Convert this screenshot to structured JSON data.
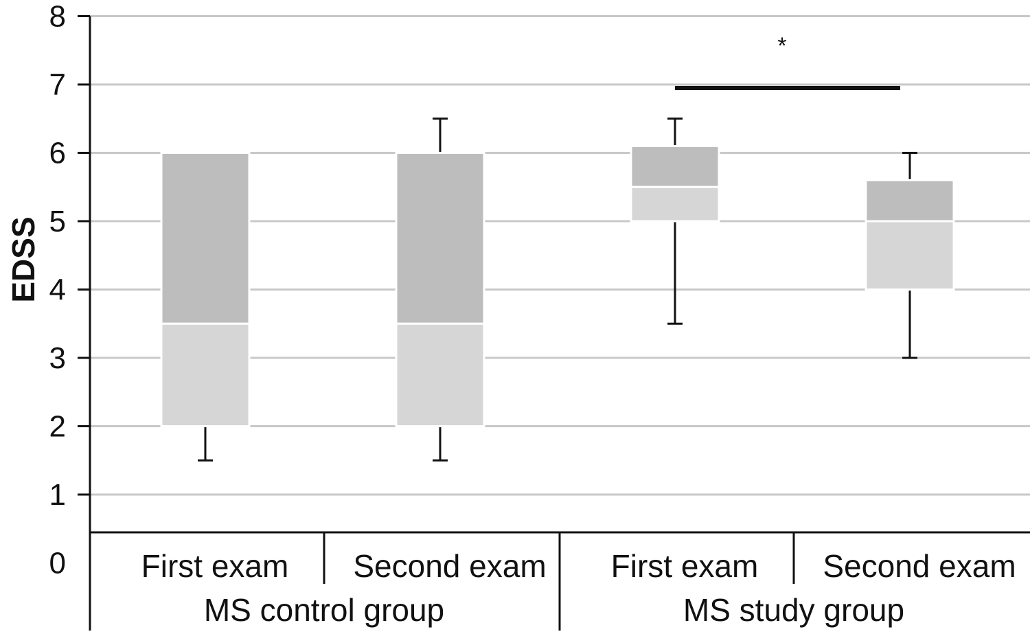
{
  "chart_data": {
    "type": "box",
    "ylabel": "EDSS",
    "ylim": [
      0,
      8
    ],
    "yticks": [
      "0",
      "1",
      "2",
      "3",
      "4",
      "5",
      "6",
      "7",
      "8"
    ],
    "grid": true,
    "colors": {
      "upper_box": "#bdbdbd",
      "lower_box": "#d6d6d6",
      "grid": "#c8c8c8",
      "line": "#111111"
    },
    "groups": [
      {
        "name": "MS control group",
        "boxes": [
          {
            "category": "First exam",
            "min": 1.5,
            "q1": 2,
            "median": 3.5,
            "q3": 6,
            "max": 6
          },
          {
            "category": "Second exam",
            "min": 1.5,
            "q1": 2,
            "median": 3.5,
            "q3": 6,
            "max": 6.5
          }
        ]
      },
      {
        "name": "MS study group",
        "boxes": [
          {
            "category": "First exam",
            "min": 3.5,
            "q1": 5,
            "median": 5.5,
            "q3": 6.1,
            "max": 6.5
          },
          {
            "category": "Second exam",
            "min": 3,
            "q1": 4,
            "median": 5,
            "q3": 5.6,
            "max": 6
          }
        ]
      }
    ],
    "significance": {
      "label": "*",
      "from_group": 1,
      "from_box": 0,
      "to_group": 1,
      "to_box": 1,
      "y": 6.95
    }
  }
}
